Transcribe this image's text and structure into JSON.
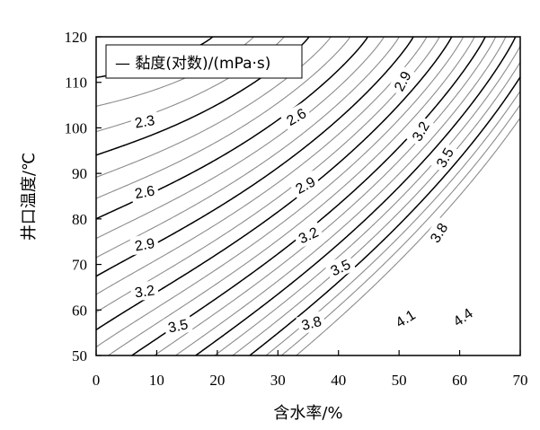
{
  "chart_data": {
    "type": "contour",
    "title": "",
    "xlabel": "含水率/%",
    "ylabel": "井口温度/℃",
    "xlim": [
      0,
      70
    ],
    "ylim": [
      50,
      120
    ],
    "xticks": [
      "0",
      "10",
      "20",
      "30",
      "40",
      "50",
      "60",
      "70"
    ],
    "yticks": [
      "50",
      "60",
      "70",
      "80",
      "90",
      "100",
      "110",
      "120"
    ],
    "legend": {
      "position": "top-left",
      "label": "— 黏度(对数)/(mPa·s)"
    },
    "series_name": "黏度(对数)/(mPa·s)",
    "colors": {
      "major_line": "#000000",
      "minor_line": "#8c8c8c",
      "frame": "#000000"
    },
    "contour_levels": [
      2.2,
      2.3,
      2.4,
      2.5,
      2.6,
      2.7,
      2.8,
      2.9,
      3.0,
      3.1,
      3.2,
      3.3,
      3.4,
      3.5,
      3.6,
      3.7,
      3.8,
      3.9,
      4.0,
      4.1,
      4.2,
      4.3,
      4.4,
      4.5,
      4.6,
      4.7
    ],
    "labeled_levels": [
      2.3,
      2.6,
      2.9,
      3.2,
      3.5,
      3.8,
      4.1,
      4.4
    ],
    "contour_labels": [
      {
        "text": "2.3",
        "x": 8,
        "y": 101.5,
        "angle": -10
      },
      {
        "text": "2.6",
        "x": 8,
        "y": 86.0,
        "angle": -10
      },
      {
        "text": "2.9",
        "x": 8,
        "y": 74.5,
        "angle": -10
      },
      {
        "text": "3.2",
        "x": 8,
        "y": 64.2,
        "angle": -8
      },
      {
        "text": "3.5",
        "x": 13.5,
        "y": 56.6,
        "angle": -12
      },
      {
        "text": "2.6",
        "x": 33,
        "y": 102.5,
        "angle": -30
      },
      {
        "text": "2.9",
        "x": 34.5,
        "y": 87.5,
        "angle": -28
      },
      {
        "text": "3.2",
        "x": 35,
        "y": 76.5,
        "angle": -25
      },
      {
        "text": "3.5",
        "x": 40.3,
        "y": 69.4,
        "angle": -25
      },
      {
        "text": "3.8",
        "x": 35.5,
        "y": 57.2,
        "angle": -15
      },
      {
        "text": "4.1",
        "x": 51,
        "y": 58.2,
        "angle": -32
      },
      {
        "text": "4.4",
        "x": 60.5,
        "y": 58.5,
        "angle": -35
      },
      {
        "text": "2.9",
        "x": 50.5,
        "y": 110.3,
        "angle": -62
      },
      {
        "text": "3.2",
        "x": 53.5,
        "y": 99.3,
        "angle": -60
      },
      {
        "text": "3.5",
        "x": 57.5,
        "y": 93.5,
        "angle": -60
      },
      {
        "text": "3.8",
        "x": 56.5,
        "y": 77.0,
        "angle": -58
      }
    ]
  }
}
